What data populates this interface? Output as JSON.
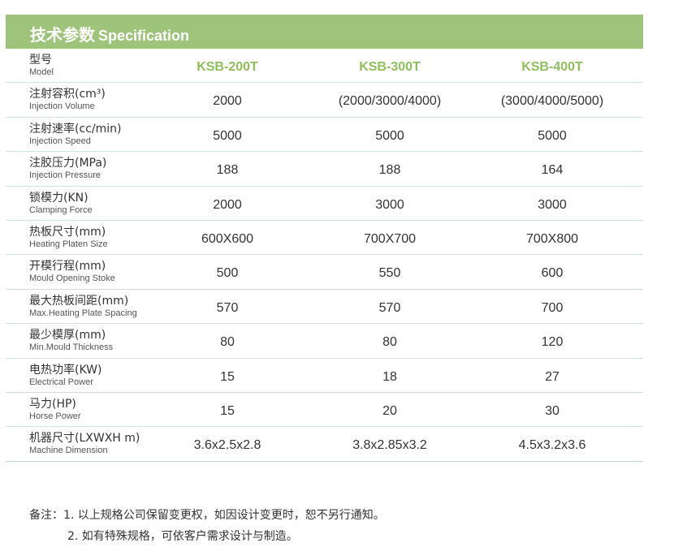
{
  "header": {
    "title_cn": "技术参数",
    "title_en": "Specification",
    "color": "#9dc47a"
  },
  "model_row": {
    "label_cn": "型号",
    "label_en": "Model",
    "models": [
      "KSB-200T",
      "KSB-300T",
      "KSB-400T"
    ],
    "model_color": "#8fbf5c"
  },
  "rows": [
    {
      "cn": "注射容积(cm³)",
      "en": "Injection Volume",
      "v": [
        "2000",
        "(2000/3000/4000)",
        "(3000/4000/5000)"
      ]
    },
    {
      "cn": "注射速率(cc/min)",
      "en": "Injection Speed",
      "v": [
        "5000",
        "5000",
        "5000"
      ]
    },
    {
      "cn": "注胶压力(MPa)",
      "en": "Injection Pressure",
      "v": [
        "188",
        "188",
        "164"
      ]
    },
    {
      "cn": "锁模力(KN)",
      "en": "Clamping Force",
      "v": [
        "2000",
        "3000",
        "3000"
      ]
    },
    {
      "cn": "热板尺寸(mm)",
      "en": "Heating Platen Size",
      "v": [
        "600X600",
        "700X700",
        "700X800"
      ]
    },
    {
      "cn": "开模行程(mm)",
      "en": "Mould Opening Stoke",
      "v": [
        "500",
        "550",
        "600"
      ]
    },
    {
      "cn": "最大热板间距(mm)",
      "en": "Max.Heating Plate Spacing",
      "v": [
        "570",
        "570",
        "700"
      ]
    },
    {
      "cn": "最少模厚(mm)",
      "en": "Min.Mould Thickness",
      "v": [
        "80",
        "80",
        "120"
      ]
    },
    {
      "cn": "电热功率(KW)",
      "en": "Electrical Power",
      "v": [
        "15",
        "18",
        "27"
      ]
    },
    {
      "cn": "马力(HP)",
      "en": "Horse Power",
      "v": [
        "15",
        "20",
        "30"
      ]
    },
    {
      "cn": "机器尺寸(LXWXH m)",
      "en": "Machine Dimension",
      "v": [
        "3.6x2.5x2.8",
        "3.8x2.85x3.2",
        "4.5x3.2x3.6"
      ]
    }
  ],
  "notes": {
    "line1": "备注：1. 以上规格公司保留变更权，如因设计变更时，恕不另行通知。",
    "line2": "2. 如有特殊规格，可依客户需求设计与制造。"
  }
}
